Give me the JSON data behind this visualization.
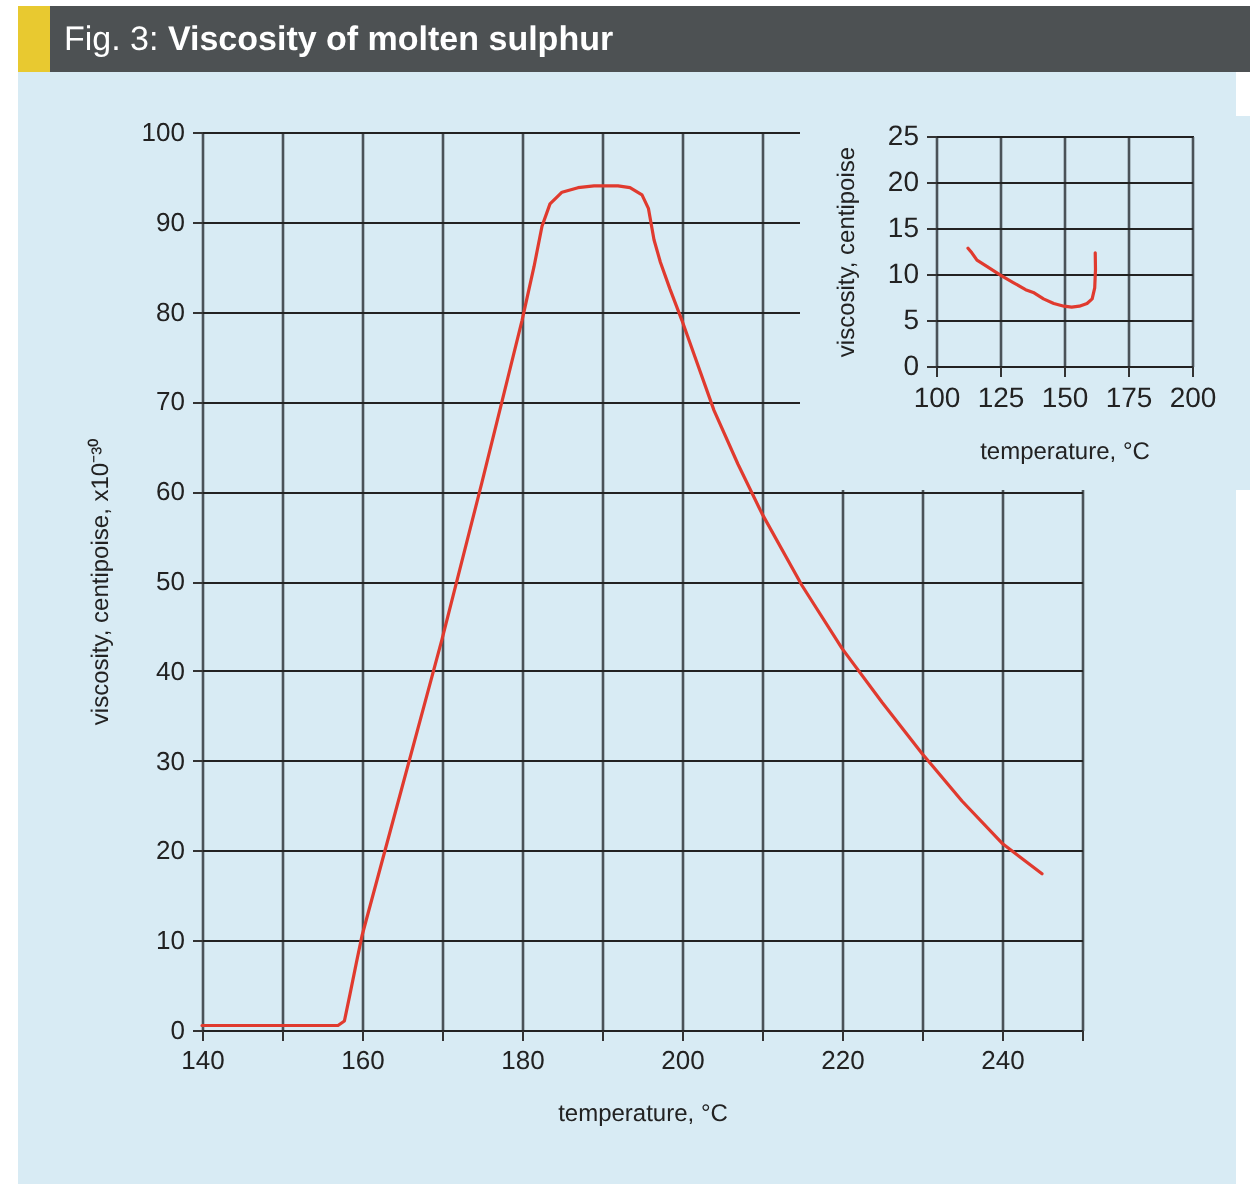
{
  "chart_data": [
    {
      "type": "line",
      "title": "Fig. 3: Viscosity of molten sulphur",
      "xlabel": "temperature, °C",
      "ylabel": "viscosity, centipoise, x10⁻³⁰",
      "x": [
        140,
        150,
        157,
        157.8,
        158.5,
        159.3,
        160,
        165,
        170,
        175,
        180,
        181.5,
        182.5,
        183.5,
        185,
        187,
        189,
        192,
        193.5,
        195,
        195.8,
        196.5,
        197.3,
        198.5,
        200,
        204,
        207,
        210,
        215,
        220,
        225,
        230,
        235,
        240,
        245
      ],
      "series": [
        {
          "color": "#e03a2e",
          "values": [
            0.5,
            0.5,
            0.5,
            1,
            4,
            7.5,
            10.5,
            27,
            43.5,
            61,
            79,
            85,
            89.5,
            92,
            93.3,
            93.8,
            94,
            94,
            93.8,
            93,
            91.5,
            88,
            85.5,
            82.5,
            79,
            69,
            63,
            57.5,
            49.5,
            42.5,
            36.5,
            30.8,
            25.5,
            20.8,
            17.4
          ]
        }
      ],
      "xlim": [
        140,
        250
      ],
      "ylim": [
        0,
        100
      ],
      "xticks": [
        140,
        {
          "value": 150,
          "label": null
        },
        160,
        {
          "value": 170,
          "label": null
        },
        180,
        {
          "value": 190,
          "label": null
        },
        200,
        {
          "value": 210,
          "label": null
        },
        220,
        {
          "value": 230,
          "label": null
        },
        240,
        {
          "value": 250,
          "label": null
        }
      ],
      "yticks": [
        0,
        10,
        20,
        30,
        40,
        50,
        60,
        70,
        80,
        90,
        100
      ],
      "grid": true
    },
    {
      "type": "line",
      "xlabel": "temperature, °C",
      "ylabel": "viscosity, centipoise",
      "x": [
        112.5,
        114,
        116,
        120,
        125,
        130,
        135,
        138,
        142,
        146,
        150,
        153,
        156,
        159,
        161,
        162,
        162.3,
        162.2
      ],
      "series": [
        {
          "color": "#e03a2e",
          "values": [
            12.8,
            12.3,
            11.5,
            10.8,
            9.9,
            9.1,
            8.3,
            8,
            7.3,
            6.8,
            6.5,
            6.4,
            6.5,
            6.8,
            7.3,
            8.5,
            10.5,
            12.3
          ]
        }
      ],
      "xlim": [
        100,
        200
      ],
      "ylim": [
        0,
        25
      ],
      "xticks": [
        100,
        125,
        150,
        175,
        200
      ],
      "yticks": [
        0,
        5,
        10,
        15,
        20,
        25
      ],
      "grid": true
    }
  ]
}
